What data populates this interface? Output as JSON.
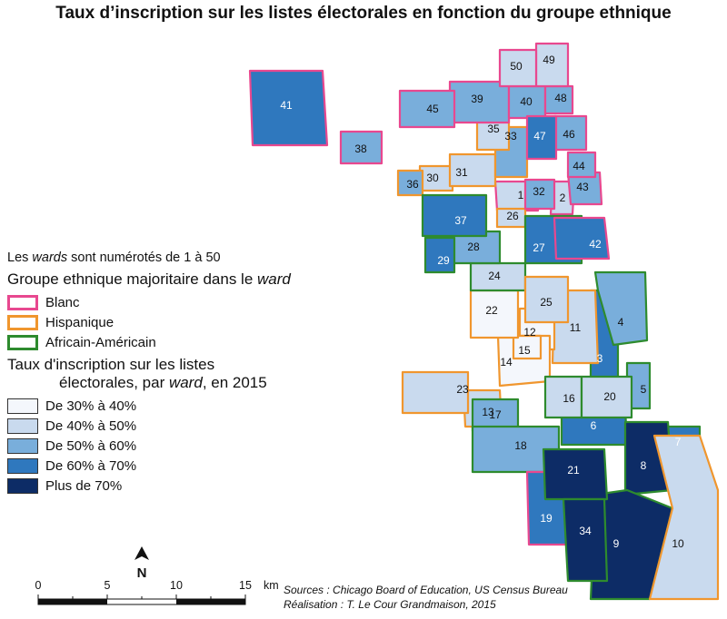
{
  "title": "Taux d’inscription sur les listes électorales en fonction du groupe ethnique",
  "note": {
    "prefix": "Les ",
    "wards": "wards",
    "suffix": " sont numérotés de 1 à 50"
  },
  "legend_group": {
    "title_prefix": "Groupe ethnique majoritaire dans le ",
    "title_em": "ward",
    "items": [
      {
        "label": "Blanc",
        "color": "#e8488f"
      },
      {
        "label": "Hispanique",
        "color": "#f0962e"
      },
      {
        "label": "Africain-Américain",
        "color": "#2e8b2e"
      }
    ]
  },
  "legend_rate": {
    "title_line1": "Taux d'inscription sur les listes",
    "title_line2_prefix": "électorales, par ",
    "title_line2_em": "ward",
    "title_line2_suffix": ", en 2015",
    "items": [
      {
        "label": "De 30% à 40%",
        "color": "#f4f7fc"
      },
      {
        "label": "De 40% à 50%",
        "color": "#c9daee"
      },
      {
        "label": "De 50% à 60%",
        "color": "#79aedb"
      },
      {
        "label": "De 60% à 70%",
        "color": "#2f78be"
      },
      {
        "label": "Plus de 70%",
        "color": "#0d2c66"
      }
    ]
  },
  "north": "N",
  "scale": {
    "ticks": [
      "0",
      "5",
      "10",
      "15"
    ],
    "unit": "km"
  },
  "sources": {
    "line1": "Sources : Chicago Board of Education, US Census Bureau",
    "line2": "Réalisation : T. Le Cour Grandmaison, 2015"
  },
  "wards": [
    {
      "n": "1",
      "rate": 2,
      "group": 0
    },
    {
      "n": "2",
      "rate": 2,
      "group": 0
    },
    {
      "n": "3",
      "rate": 4,
      "group": 2
    },
    {
      "n": "4",
      "rate": 3,
      "group": 2
    },
    {
      "n": "5",
      "rate": 3,
      "group": 2
    },
    {
      "n": "6",
      "rate": 4,
      "group": 2
    },
    {
      "n": "7",
      "rate": 4,
      "group": 2
    },
    {
      "n": "8",
      "rate": 5,
      "group": 2
    },
    {
      "n": "9",
      "rate": 5,
      "group": 2
    },
    {
      "n": "10",
      "rate": 2,
      "group": 1
    },
    {
      "n": "11",
      "rate": 2,
      "group": 1
    },
    {
      "n": "12",
      "rate": 1,
      "group": 1
    },
    {
      "n": "13",
      "rate": 2,
      "group": 1
    },
    {
      "n": "14",
      "rate": 1,
      "group": 1
    },
    {
      "n": "15",
      "rate": 1,
      "group": 1
    },
    {
      "n": "16",
      "rate": 2,
      "group": 2
    },
    {
      "n": "17",
      "rate": 3,
      "group": 2
    },
    {
      "n": "18",
      "rate": 3,
      "group": 2
    },
    {
      "n": "19",
      "rate": 4,
      "group": 0
    },
    {
      "n": "20",
      "rate": 2,
      "group": 2
    },
    {
      "n": "21",
      "rate": 5,
      "group": 2
    },
    {
      "n": "22",
      "rate": 1,
      "group": 1
    },
    {
      "n": "23",
      "rate": 2,
      "group": 1
    },
    {
      "n": "24",
      "rate": 2,
      "group": 2
    },
    {
      "n": "25",
      "rate": 2,
      "group": 1
    },
    {
      "n": "26",
      "rate": 2,
      "group": 1
    },
    {
      "n": "27",
      "rate": 4,
      "group": 2
    },
    {
      "n": "28",
      "rate": 3,
      "group": 2
    },
    {
      "n": "29",
      "rate": 4,
      "group": 2
    },
    {
      "n": "30",
      "rate": 2,
      "group": 1
    },
    {
      "n": "31",
      "rate": 2,
      "group": 1
    },
    {
      "n": "32",
      "rate": 3,
      "group": 0
    },
    {
      "n": "33",
      "rate": 3,
      "group": 1
    },
    {
      "n": "34",
      "rate": 5,
      "group": 2
    },
    {
      "n": "35",
      "rate": 2,
      "group": 1
    },
    {
      "n": "36",
      "rate": 3,
      "group": 1
    },
    {
      "n": "37",
      "rate": 4,
      "group": 2
    },
    {
      "n": "38",
      "rate": 3,
      "group": 0
    },
    {
      "n": "39",
      "rate": 3,
      "group": 0
    },
    {
      "n": "40",
      "rate": 3,
      "group": 0
    },
    {
      "n": "41",
      "rate": 4,
      "group": 0
    },
    {
      "n": "42",
      "rate": 4,
      "group": 0
    },
    {
      "n": "43",
      "rate": 3,
      "group": 0
    },
    {
      "n": "44",
      "rate": 3,
      "group": 0
    },
    {
      "n": "45",
      "rate": 3,
      "group": 0
    },
    {
      "n": "46",
      "rate": 3,
      "group": 0
    },
    {
      "n": "47",
      "rate": 4,
      "group": 0
    },
    {
      "n": "48",
      "rate": 3,
      "group": 0
    },
    {
      "n": "49",
      "rate": 2,
      "group": 0
    },
    {
      "n": "50",
      "rate": 2,
      "group": 0
    }
  ]
}
